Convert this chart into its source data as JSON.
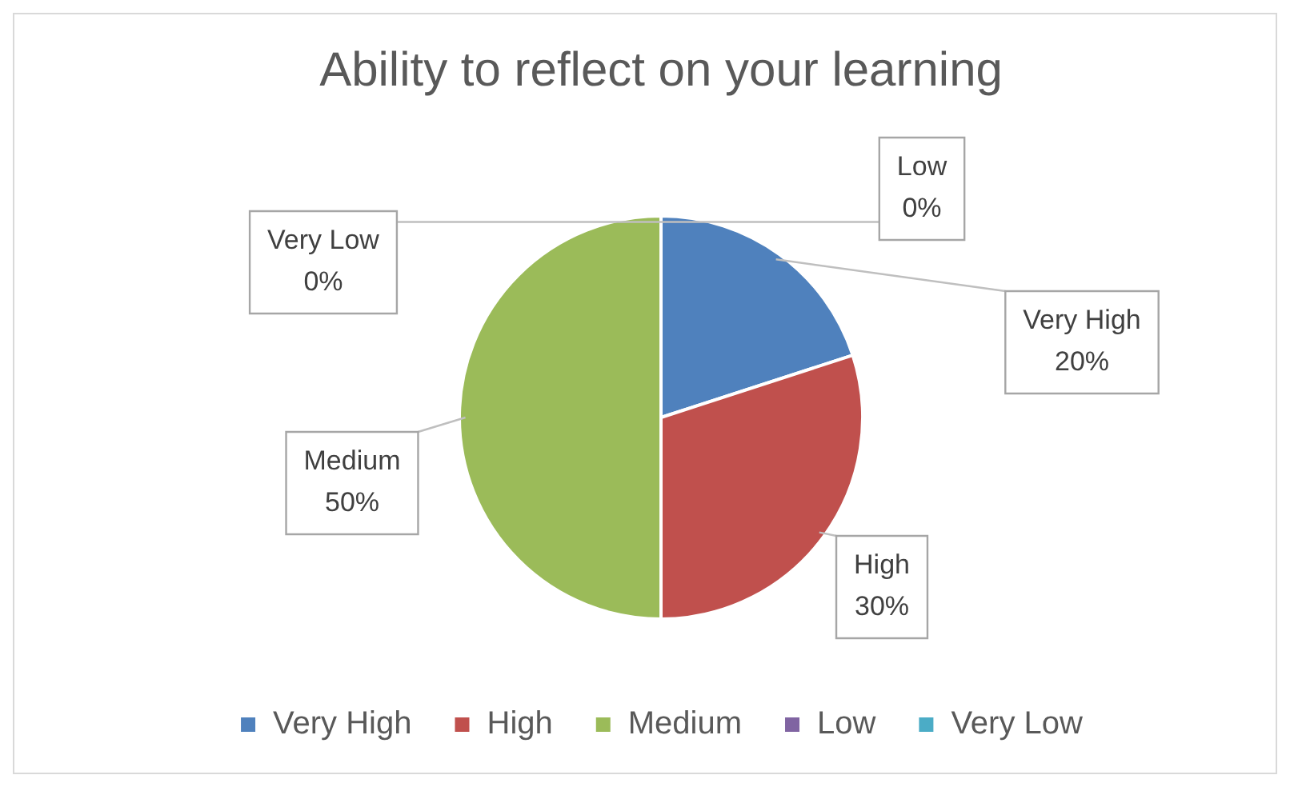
{
  "chart_data": {
    "type": "pie",
    "title": "Ability to reflect on your learning",
    "categories": [
      "Very High",
      "High",
      "Medium",
      "Low",
      "Very Low"
    ],
    "values": [
      20,
      30,
      50,
      0,
      0
    ],
    "value_labels": [
      "20%",
      "30%",
      "50%",
      "0%",
      "0%"
    ],
    "colors": [
      "#4f81bd",
      "#c0504d",
      "#9bbb59",
      "#8064a2",
      "#4bacc6"
    ],
    "legend": "bottom"
  }
}
